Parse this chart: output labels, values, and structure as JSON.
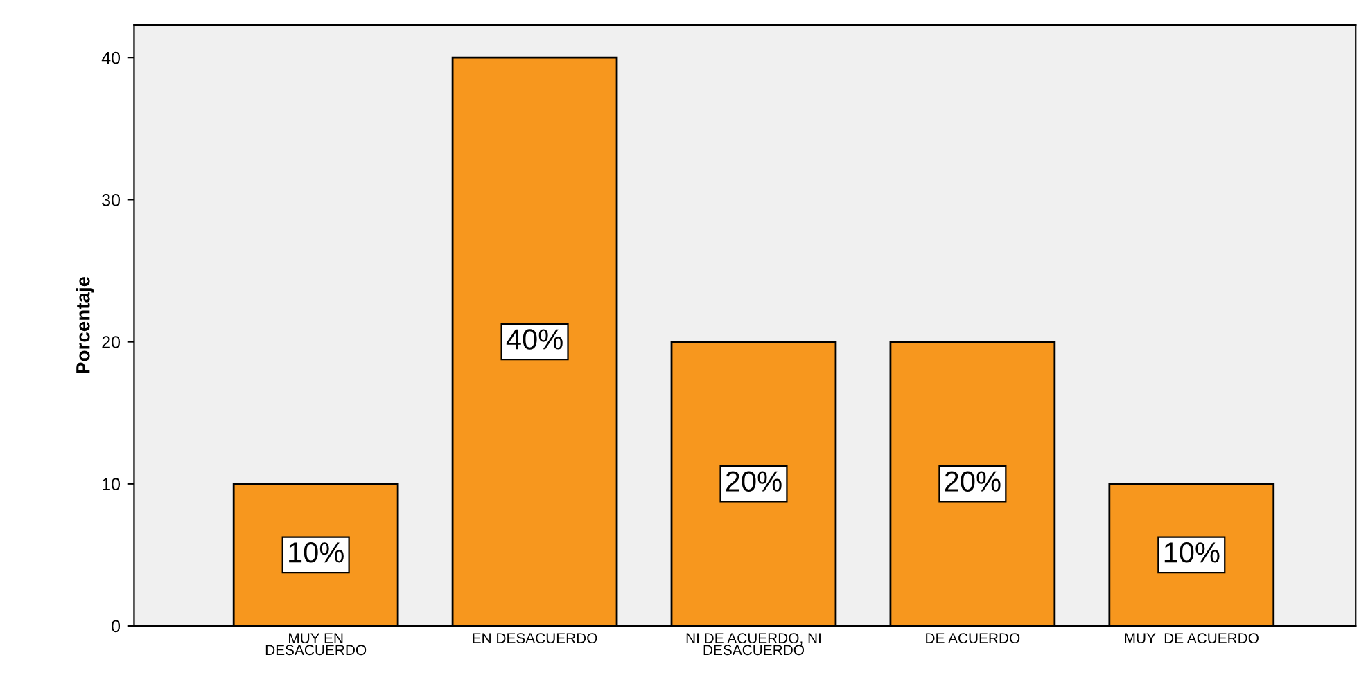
{
  "chart_data": {
    "type": "bar",
    "ylabel": "Porcentaje",
    "categories": [
      "MUY EN\nDESACUERDO",
      "EN DESACUERDO",
      "NI DE ACUERDO, NI\nDESACUERDO",
      "DE ACUERDO",
      "MUY  DE ACUERDO"
    ],
    "values": [
      10,
      40,
      20,
      20,
      10
    ],
    "value_labels": [
      "10%",
      "40%",
      "20%",
      "20%",
      "10%"
    ],
    "color": "#f7971e",
    "ylim": [
      0,
      42.3
    ],
    "yticks": [
      0,
      10,
      20,
      30,
      40
    ],
    "grid": false
  }
}
